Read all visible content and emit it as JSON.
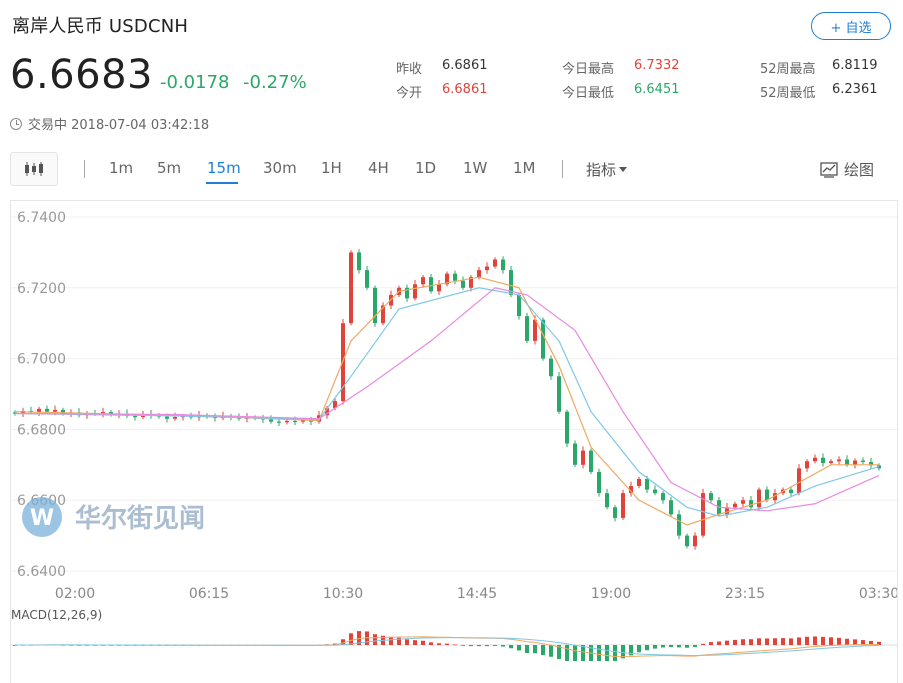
{
  "header": {
    "title": "离岸人民币  USDCNH",
    "add_button": "+ 自选"
  },
  "quote": {
    "price": "6.6683",
    "change": "-0.0178",
    "change_pct": "-0.27%"
  },
  "stats": {
    "prev_close_label": "昨收",
    "prev_close": "6.6861",
    "open_label": "今开",
    "open": "6.6861",
    "day_high_label": "今日最高",
    "day_high": "6.7332",
    "day_low_label": "今日最低",
    "day_low": "6.6451",
    "w52_high_label": "52周最高",
    "w52_high": "6.8119",
    "w52_low_label": "52周最低",
    "w52_low": "6.2361"
  },
  "status": {
    "text": "交易中 2018-07-04 03:42:18"
  },
  "toolbar": {
    "timeframes": [
      "1m",
      "5m",
      "15m",
      "30m",
      "1H",
      "4H",
      "1D",
      "1W",
      "1M"
    ],
    "active": "15m",
    "indicators_label": "指标",
    "draw_label": "绘图"
  },
  "watermark": {
    "text": "华尔街见闻"
  },
  "colors": {
    "up": "#e0433a",
    "down": "#2aa86a",
    "accent": "#1e7fd6",
    "ma_short": "#f0a860",
    "ma_mid": "#7ec8e8",
    "ma_long": "#e98ae0"
  },
  "chart_data": {
    "type": "candlestick",
    "y_ticks": [
      "6.7400",
      "6.7200",
      "6.7000",
      "6.6800",
      "6.6600",
      "6.6400"
    ],
    "ylim": [
      6.64,
      6.74
    ],
    "x_ticks": [
      "02:00",
      "06:15",
      "10:30",
      "14:45",
      "19:00",
      "23:15",
      "03:30"
    ],
    "macd_label": "MACD(12,26,9)",
    "close_series": [
      6.6845,
      6.6852,
      6.6848,
      6.6858,
      6.685,
      6.6855,
      6.6845,
      6.6848,
      6.684,
      6.6846,
      6.6844,
      6.6849,
      6.6842,
      6.6845,
      6.6838,
      6.6835,
      6.6843,
      6.684,
      6.6836,
      6.683,
      6.6835,
      6.6838,
      6.6834,
      6.684,
      6.6836,
      6.6832,
      6.6838,
      6.6836,
      6.683,
      6.6834,
      6.6832,
      6.6828,
      6.6822,
      6.682,
      6.6824,
      6.6822,
      6.6826,
      6.6822,
      6.684,
      6.686,
      6.688,
      6.71,
      6.73,
      6.725,
      6.72,
      6.71,
      6.715,
      6.718,
      6.72,
      6.717,
      6.721,
      6.723,
      6.719,
      6.721,
      6.724,
      6.722,
      6.72,
      6.723,
      6.725,
      6.726,
      6.728,
      6.725,
      6.718,
      6.712,
      6.705,
      6.711,
      6.7,
      6.695,
      6.685,
      6.676,
      6.67,
      6.674,
      6.668,
      6.662,
      6.658,
      6.655,
      6.662,
      6.664,
      6.666,
      6.663,
      6.662,
      6.66,
      6.656,
      6.65,
      6.647,
      6.65,
      6.662,
      6.66,
      6.656,
      6.658,
      6.659,
      6.66,
      6.658,
      6.663,
      6.66,
      6.662,
      6.663,
      6.662,
      6.669,
      6.671,
      6.672,
      6.6705,
      6.671,
      6.6715,
      6.67,
      6.6712,
      6.6708,
      6.6698,
      6.669
    ],
    "ma_short": [
      [
        0,
        6.685
      ],
      [
        20,
        6.684
      ],
      [
        38,
        6.6825
      ],
      [
        42,
        6.705
      ],
      [
        48,
        6.719
      ],
      [
        58,
        6.723
      ],
      [
        63,
        6.72
      ],
      [
        68,
        6.698
      ],
      [
        72,
        6.675
      ],
      [
        78,
        6.66
      ],
      [
        84,
        6.653
      ],
      [
        88,
        6.656
      ],
      [
        94,
        6.66
      ],
      [
        98,
        6.665
      ],
      [
        102,
        6.67
      ],
      [
        108,
        6.67
      ]
    ],
    "ma_mid": [
      [
        0,
        6.6845
      ],
      [
        20,
        6.6838
      ],
      [
        38,
        6.6828
      ],
      [
        42,
        6.695
      ],
      [
        48,
        6.714
      ],
      [
        58,
        6.72
      ],
      [
        63,
        6.718
      ],
      [
        68,
        6.705
      ],
      [
        72,
        6.685
      ],
      [
        78,
        6.668
      ],
      [
        84,
        6.658
      ],
      [
        88,
        6.6555
      ],
      [
        94,
        6.658
      ],
      [
        100,
        6.664
      ],
      [
        108,
        6.6695
      ]
    ],
    "ma_long": [
      [
        0,
        6.6845
      ],
      [
        20,
        6.6842
      ],
      [
        38,
        6.683
      ],
      [
        44,
        6.692
      ],
      [
        52,
        6.705
      ],
      [
        60,
        6.72
      ],
      [
        64,
        6.718
      ],
      [
        70,
        6.708
      ],
      [
        76,
        6.685
      ],
      [
        82,
        6.665
      ],
      [
        88,
        6.658
      ],
      [
        94,
        6.657
      ],
      [
        100,
        6.659
      ],
      [
        108,
        6.667
      ]
    ]
  }
}
